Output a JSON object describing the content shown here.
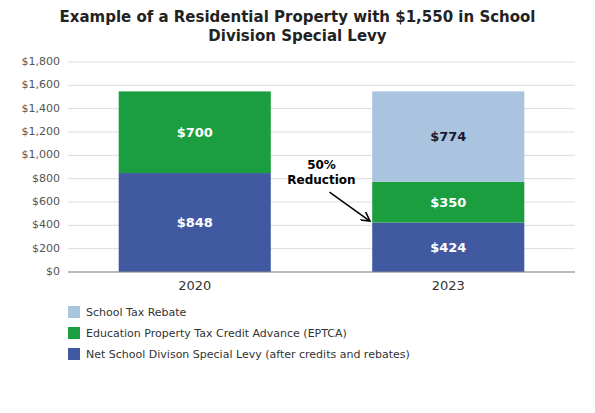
{
  "chart_data": {
    "type": "bar",
    "stacked": true,
    "title": "Example of a Residential Property with $1,550 in School\nDivision Special Levy",
    "categories": [
      "2020",
      "2023"
    ],
    "series": [
      {
        "name": "Net School Divison Special Levy (after credits and rebates)",
        "color": "#4059a0",
        "values": [
          848,
          424
        ],
        "value_labels": [
          "$848",
          "$424"
        ]
      },
      {
        "name": "Education Property Tax Credit Advance (EPTCA)",
        "color": "#1a9e3f",
        "values": [
          700,
          350
        ],
        "value_labels": [
          "$700",
          "$350"
        ]
      },
      {
        "name": "School Tax Rebate",
        "color": "#aac4e0",
        "values": [
          0,
          774
        ],
        "value_labels": [
          null,
          "$774"
        ]
      }
    ],
    "ylim": [
      0,
      1800
    ],
    "yticks": [
      {
        "value": 0,
        "label": "$0"
      },
      {
        "value": 200,
        "label": "$200"
      },
      {
        "value": 400,
        "label": "$400"
      },
      {
        "value": 600,
        "label": "$600"
      },
      {
        "value": 800,
        "label": "$800"
      },
      {
        "value": 1000,
        "label": "$1,000"
      },
      {
        "value": 1200,
        "label": "$1,200"
      },
      {
        "value": 1400,
        "label": "$1,400"
      },
      {
        "value": 1600,
        "label": "$1,600"
      },
      {
        "value": 1800,
        "label": "$1,800"
      }
    ],
    "grid": true,
    "data_labels": true,
    "legend": "bottom",
    "annotations": [
      {
        "text": "50%\nReduction"
      }
    ]
  }
}
